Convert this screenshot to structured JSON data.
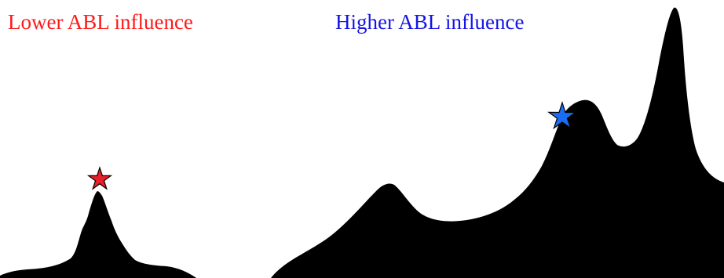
{
  "labels": {
    "lower": "Lower ABL influence",
    "higher": "Higher ABL influence"
  },
  "colors": {
    "background": "#ffffff",
    "terrain": "#000000",
    "lower": "#ff1a1a",
    "higher": "#1414e6",
    "lower_star": "#e8202a",
    "higher_star": "#1a6cf0",
    "star_outline": "#000000"
  },
  "markers": {
    "lower": "star-icon",
    "higher": "star-icon"
  }
}
